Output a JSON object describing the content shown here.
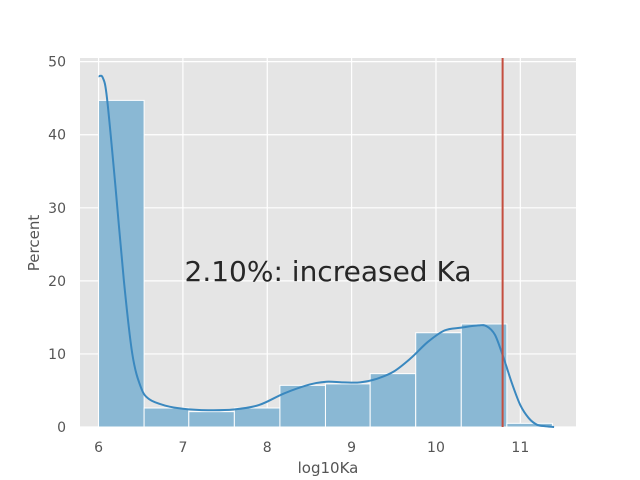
{
  "chart_data": {
    "type": "bar",
    "title": "",
    "xlabel": "log10Ka",
    "ylabel": "Percent",
    "xlim": [
      5.78,
      11.66
    ],
    "ylim": [
      0,
      50.5
    ],
    "xticks": [
      6,
      7,
      8,
      9,
      10,
      11
    ],
    "yticks": [
      0,
      10,
      20,
      30,
      40,
      50
    ],
    "grid": true,
    "bins": [
      {
        "x0": 6.0,
        "x1": 6.54,
        "value": 44.7
      },
      {
        "x0": 6.54,
        "x1": 7.07,
        "value": 2.6
      },
      {
        "x0": 7.07,
        "x1": 7.61,
        "value": 2.1
      },
      {
        "x0": 7.61,
        "x1": 8.15,
        "value": 2.6
      },
      {
        "x0": 8.15,
        "x1": 8.69,
        "value": 5.7
      },
      {
        "x0": 8.69,
        "x1": 9.22,
        "value": 5.9
      },
      {
        "x0": 9.22,
        "x1": 9.76,
        "value": 7.3
      },
      {
        "x0": 9.76,
        "x1": 10.3,
        "value": 12.9
      },
      {
        "x0": 10.3,
        "x1": 10.84,
        "value": 14.1
      },
      {
        "x0": 10.84,
        "x1": 11.38,
        "value": 0.5
      }
    ],
    "kde": {
      "x": [
        6.0,
        6.05,
        6.1,
        6.2,
        6.3,
        6.4,
        6.5,
        6.6,
        6.8,
        7.0,
        7.3,
        7.6,
        7.9,
        8.2,
        8.5,
        8.7,
        8.9,
        9.1,
        9.3,
        9.5,
        9.7,
        9.9,
        10.1,
        10.3,
        10.5,
        10.6,
        10.7,
        10.8,
        10.9,
        11.0,
        11.1,
        11.2,
        11.3,
        11.4
      ],
      "y": [
        48.0,
        47.8,
        45.0,
        33.0,
        20.0,
        10.0,
        5.5,
        3.8,
        2.9,
        2.5,
        2.3,
        2.4,
        3.0,
        4.6,
        5.8,
        6.2,
        6.1,
        6.1,
        6.6,
        7.6,
        9.4,
        11.6,
        13.2,
        13.6,
        13.9,
        13.8,
        12.6,
        9.5,
        6.0,
        3.0,
        1.2,
        0.3,
        0.1,
        0.0
      ]
    },
    "threshold_x": 10.79,
    "annotation_text": "2.10%: increased Ka",
    "colors": {
      "background": "#e5e5e5",
      "grid": "#ffffff",
      "bar_fill": "#8ab8d4",
      "bar_edge": "#ffffff",
      "kde_line": "#3a88bf",
      "threshold_line": "#c44e3f"
    }
  }
}
